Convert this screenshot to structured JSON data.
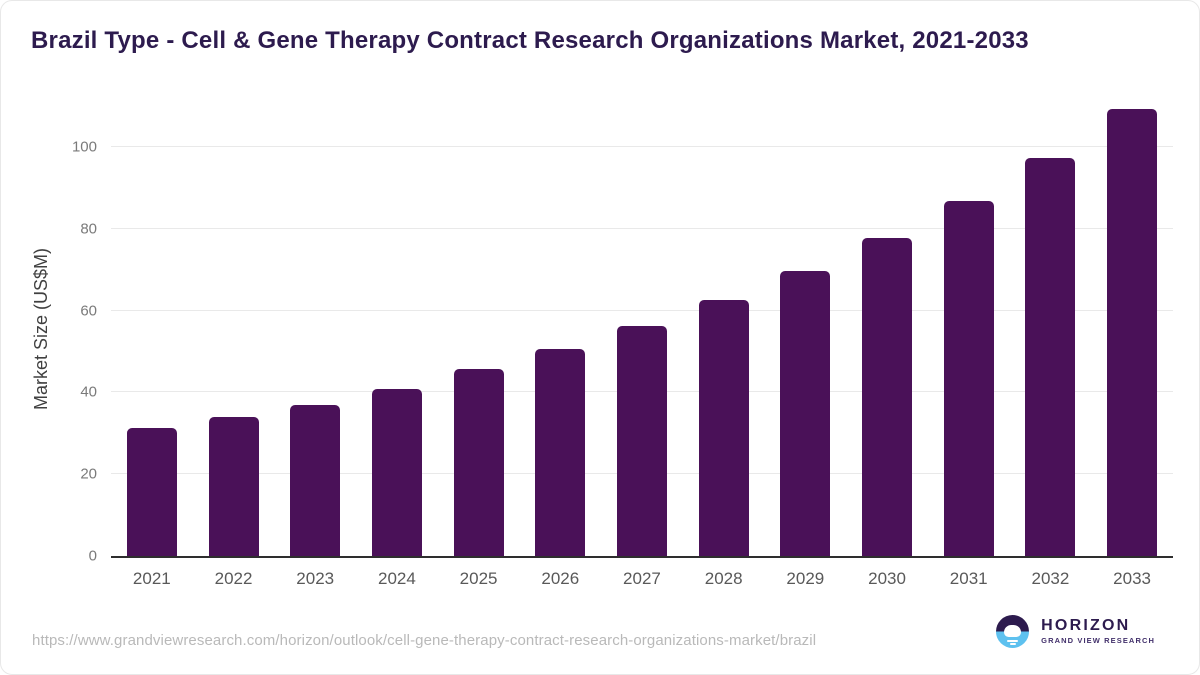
{
  "title": "Brazil Type - Cell & Gene Therapy Contract Research Organizations Market, 2021-2033",
  "chart_data": {
    "type": "bar",
    "categories": [
      "2021",
      "2022",
      "2023",
      "2024",
      "2025",
      "2026",
      "2027",
      "2028",
      "2029",
      "2030",
      "2031",
      "2032",
      "2033"
    ],
    "values": [
      31.4,
      33.9,
      37.0,
      40.9,
      45.7,
      50.6,
      56.2,
      62.6,
      69.8,
      77.8,
      86.9,
      97.3,
      109.4
    ],
    "title": "Brazil Type - Cell & Gene Therapy Contract Research Organizations Market, 2021-2033",
    "xlabel": "",
    "ylabel": "Market Size (US$M)",
    "yticks": [
      0,
      20,
      40,
      60,
      80,
      100
    ],
    "ylim": [
      0,
      112
    ],
    "grid": true,
    "legend_position": "none",
    "bar_color": "#4a1158"
  },
  "colors": {
    "title_text": "#2d1b4e",
    "bar": "#4a1158",
    "gridline": "#e9e9e9",
    "axis_line": "#2e2e2e",
    "ytick_text": "#7a7a7a",
    "xtick_text": "#595959",
    "url_text": "#b9b9b9",
    "logo_purple": "#2d1b4e",
    "logo_blue": "#5ec1ef"
  },
  "footer": {
    "source_url": "https://www.grandviewresearch.com/horizon/outlook/cell-gene-therapy-contract-research-organizations-market/brazil",
    "logo": {
      "brand": "HORIZON",
      "subtitle": "GRAND VIEW RESEARCH",
      "icon": "horizon-sun-icon"
    }
  }
}
